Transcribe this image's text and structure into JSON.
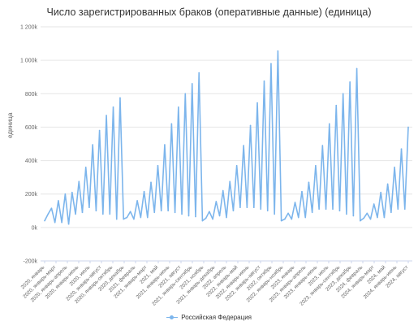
{
  "chart_data": {
    "type": "line",
    "title": "Число зарегистрированных браков (оперативные данные) (единица)",
    "ylabel": "единица",
    "ylim": [
      -200000,
      1200000
    ],
    "yticks": [
      -200000,
      0,
      200000,
      400000,
      600000,
      800000,
      1000000,
      1200000
    ],
    "ytick_labels": [
      "-200k",
      "0k",
      "200k",
      "400k",
      "600k",
      "800k",
      "1 000k",
      "1 200k"
    ],
    "grid": true,
    "legend_position": "bottom-center",
    "color": "#7cb5ec",
    "x_tick_labels": [
      "2020, январь",
      "2020, январь-март",
      "2020, январь-апрель",
      "2020, январь-июнь",
      "2020, июль",
      "2020, январь-август",
      "2020, январь-октябрь",
      "2020, декабрь",
      "2021, февраль",
      "2021, январь-март",
      "2021, май",
      "2021, январь-июнь",
      "2021, август",
      "2021, январь-сентябрь",
      "2021, ноябрь",
      "2021, январь-декабрь",
      "2022, апрель",
      "2022, январь-май",
      "2022, январь-июнь",
      "2022, январь-август",
      "2022, октябрь",
      "2022, январь-ноябрь",
      "2023, январь",
      "2023, январь-апрель",
      "2023, январь-июнь",
      "2023, июль",
      "2023, январь-сентябрь",
      "2023, декабрь",
      "2024, февраль",
      "2024, январь-март",
      "2024, май",
      "2024, январь-июнь",
      "2024, август"
    ],
    "series": [
      {
        "name": "Российская Федерация",
        "values": [
          40000,
          80000,
          115000,
          30000,
          160000,
          30000,
          200000,
          20000,
          210000,
          80000,
          275000,
          90000,
          360000,
          120000,
          495000,
          100000,
          580000,
          80000,
          670000,
          80000,
          720000,
          50000,
          775000,
          50000,
          60000,
          95000,
          50000,
          160000,
          60000,
          215000,
          60000,
          270000,
          90000,
          370000,
          100000,
          495000,
          100000,
          620000,
          90000,
          720000,
          80000,
          800000,
          70000,
          860000,
          65000,
          925000,
          40000,
          55000,
          95000,
          50000,
          155000,
          70000,
          220000,
          60000,
          275000,
          100000,
          370000,
          120000,
          490000,
          120000,
          610000,
          120000,
          745000,
          110000,
          875000,
          100000,
          980000,
          80000,
          1055000,
          40000,
          50000,
          85000,
          50000,
          150000,
          60000,
          215000,
          60000,
          270000,
          90000,
          370000,
          110000,
          490000,
          110000,
          620000,
          110000,
          730000,
          100000,
          800000,
          80000,
          870000,
          70000,
          950000,
          40000,
          55000,
          85000,
          50000,
          140000,
          60000,
          210000,
          60000,
          260000,
          90000,
          360000,
          110000,
          470000,
          110000,
          600000
        ]
      }
    ]
  }
}
